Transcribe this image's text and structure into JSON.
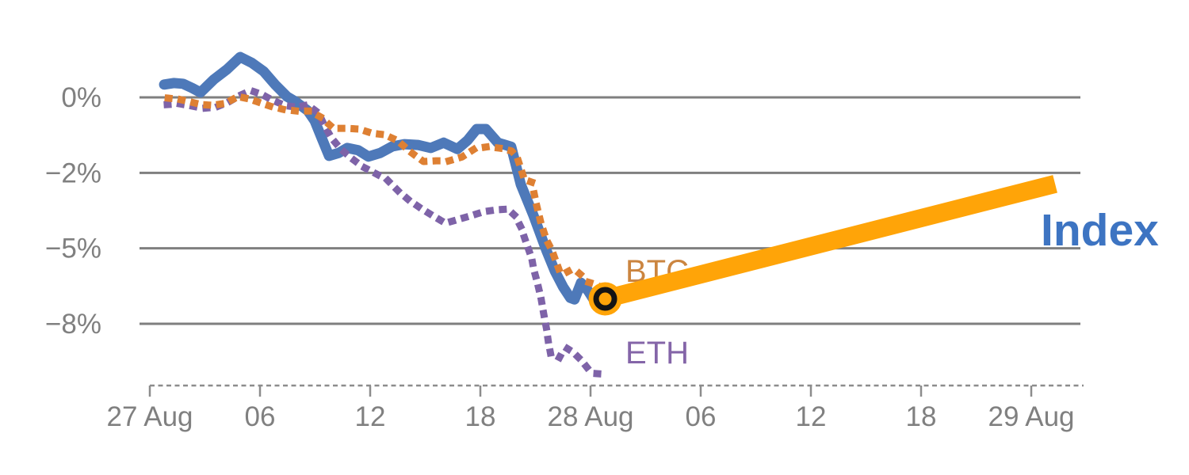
{
  "chart_data": {
    "type": "line",
    "title": "",
    "description": "Percent performance of crypto Index vs BTC and ETH from 27 Aug to 29 Aug, with current-point marker and rising projection band",
    "x_axis": {
      "unit": "hours since 27 Aug 00:00",
      "range_hours": [
        0,
        50.8
      ],
      "style": "dashed-line-with-ticks",
      "ticks": [
        {
          "t": 0,
          "label": "27 Aug"
        },
        {
          "t": 6,
          "label": "06"
        },
        {
          "t": 12,
          "label": "12"
        },
        {
          "t": 18,
          "label": "18"
        },
        {
          "t": 24,
          "label": "28 Aug"
        },
        {
          "t": 30,
          "label": "06"
        },
        {
          "t": 36,
          "label": "12"
        },
        {
          "t": 42,
          "label": "18"
        },
        {
          "t": 48,
          "label": "29 Aug"
        }
      ]
    },
    "y_axis": {
      "unit": "%",
      "grid": true,
      "note": "gridlines equally spaced for values 0, -2, -5, -8",
      "ticks": [
        {
          "v": 0,
          "label": "0%"
        },
        {
          "v": -2,
          "label": "−2%"
        },
        {
          "v": -5,
          "label": "−5%"
        },
        {
          "v": -8,
          "label": "−8%"
        }
      ]
    },
    "series": [
      {
        "name": "Index",
        "role": "index",
        "style": "solid",
        "color": "#4E79B9",
        "points": [
          [
            0.78,
            0.34
          ],
          [
            1.3,
            0.38
          ],
          [
            1.81,
            0.36
          ],
          [
            2.3,
            0.25
          ],
          [
            2.76,
            0.13
          ],
          [
            3.5,
            0.48
          ],
          [
            4.2,
            0.74
          ],
          [
            4.92,
            1.07
          ],
          [
            5.57,
            0.91
          ],
          [
            6.2,
            0.69
          ],
          [
            6.82,
            0.34
          ],
          [
            7.47,
            0.02
          ],
          [
            7.9,
            -0.1
          ],
          [
            8.6,
            -0.35
          ],
          [
            8.98,
            -0.62
          ],
          [
            9.37,
            -1.09
          ],
          [
            9.76,
            -1.55
          ],
          [
            10.3,
            -1.47
          ],
          [
            10.75,
            -1.34
          ],
          [
            11.35,
            -1.4
          ],
          [
            11.9,
            -1.57
          ],
          [
            12.56,
            -1.47
          ],
          [
            13.2,
            -1.3
          ],
          [
            13.86,
            -1.24
          ],
          [
            14.6,
            -1.26
          ],
          [
            15.3,
            -1.34
          ],
          [
            16.0,
            -1.2
          ],
          [
            16.75,
            -1.37
          ],
          [
            17.3,
            -1.14
          ],
          [
            17.8,
            -0.84
          ],
          [
            18.3,
            -0.84
          ],
          [
            18.95,
            -1.2
          ],
          [
            19.68,
            -1.31
          ],
          [
            20.2,
            -2.46
          ],
          [
            20.9,
            -3.71
          ],
          [
            21.6,
            -5.09
          ],
          [
            22.06,
            -5.91
          ],
          [
            22.5,
            -6.53
          ],
          [
            22.9,
            -6.97
          ],
          [
            23.13,
            -7.03
          ],
          [
            23.48,
            -6.37
          ],
          [
            23.87,
            -6.69
          ],
          [
            24.2,
            -7.07
          ],
          [
            24.5,
            -7.05
          ],
          [
            24.8,
            -7.01
          ]
        ]
      },
      {
        "name": "ETH",
        "role": "eth",
        "style": "dotted",
        "color": "#7E63A8",
        "points": [
          [
            0.95,
            -0.19
          ],
          [
            1.6,
            -0.17
          ],
          [
            2.2,
            -0.22
          ],
          [
            2.9,
            -0.29
          ],
          [
            3.6,
            -0.26
          ],
          [
            4.3,
            -0.12
          ],
          [
            4.9,
            0.05
          ],
          [
            5.5,
            0.18
          ],
          [
            6.1,
            0.08
          ],
          [
            6.7,
            -0.08
          ],
          [
            7.4,
            -0.22
          ],
          [
            8.0,
            -0.26
          ],
          [
            8.6,
            -0.2
          ],
          [
            9.2,
            -0.42
          ],
          [
            9.5,
            -0.74
          ],
          [
            9.9,
            -1.08
          ],
          [
            10.4,
            -1.37
          ],
          [
            11.0,
            -1.62
          ],
          [
            11.6,
            -1.84
          ],
          [
            12.3,
            -2.03
          ],
          [
            12.9,
            -2.26
          ],
          [
            13.5,
            -2.7
          ],
          [
            14.1,
            -3.08
          ],
          [
            14.7,
            -3.38
          ],
          [
            15.4,
            -3.7
          ],
          [
            16.1,
            -4.0
          ],
          [
            16.8,
            -3.85
          ],
          [
            17.5,
            -3.7
          ],
          [
            18.2,
            -3.54
          ],
          [
            18.9,
            -3.47
          ],
          [
            19.5,
            -3.44
          ],
          [
            19.9,
            -3.71
          ],
          [
            20.2,
            -4.15
          ],
          [
            20.5,
            -4.78
          ],
          [
            20.8,
            -5.41
          ],
          [
            20.9,
            -5.82
          ],
          [
            21.1,
            -6.35
          ],
          [
            21.3,
            -6.98
          ],
          [
            21.45,
            -7.6
          ],
          [
            21.6,
            -8.19
          ],
          [
            21.7,
            -8.7
          ],
          [
            21.85,
            -9.29
          ],
          [
            22.05,
            -9.35
          ],
          [
            22.3,
            -9.35
          ],
          [
            22.5,
            -9.07
          ],
          [
            22.7,
            -8.97
          ],
          [
            23.05,
            -9.13
          ],
          [
            23.5,
            -9.45
          ],
          [
            23.9,
            -9.82
          ],
          [
            24.3,
            -9.98
          ],
          [
            24.7,
            -10.0
          ]
        ]
      },
      {
        "name": "BTC",
        "role": "btc",
        "style": "dotted",
        "color": "#DE8033",
        "points": [
          [
            1.0,
            -0.02
          ],
          [
            1.6,
            -0.05
          ],
          [
            2.2,
            -0.12
          ],
          [
            2.8,
            -0.19
          ],
          [
            3.4,
            -0.21
          ],
          [
            4.1,
            -0.16
          ],
          [
            4.8,
            0.02
          ],
          [
            5.4,
            -0.04
          ],
          [
            6.0,
            -0.14
          ],
          [
            6.6,
            -0.24
          ],
          [
            7.3,
            -0.32
          ],
          [
            8.0,
            -0.36
          ],
          [
            8.7,
            -0.36
          ],
          [
            9.3,
            -0.52
          ],
          [
            10.0,
            -0.82
          ],
          [
            10.7,
            -0.82
          ],
          [
            11.4,
            -0.84
          ],
          [
            12.1,
            -0.95
          ],
          [
            12.8,
            -0.99
          ],
          [
            13.5,
            -1.15
          ],
          [
            14.2,
            -1.45
          ],
          [
            14.9,
            -1.7
          ],
          [
            15.6,
            -1.68
          ],
          [
            16.3,
            -1.68
          ],
          [
            17.0,
            -1.58
          ],
          [
            17.7,
            -1.36
          ],
          [
            18.4,
            -1.31
          ],
          [
            19.1,
            -1.35
          ],
          [
            19.7,
            -1.42
          ],
          [
            20.0,
            -1.58
          ],
          [
            20.4,
            -2.27
          ],
          [
            20.8,
            -2.37
          ],
          [
            21.05,
            -3.25
          ],
          [
            21.3,
            -4.0
          ],
          [
            21.6,
            -4.66
          ],
          [
            21.9,
            -5.09
          ],
          [
            22.3,
            -5.88
          ],
          [
            22.5,
            -6.03
          ],
          [
            22.8,
            -5.91
          ],
          [
            23.2,
            -5.88
          ],
          [
            23.6,
            -6.13
          ],
          [
            23.9,
            -6.35
          ],
          [
            24.3,
            -6.44
          ],
          [
            24.65,
            -6.58
          ]
        ]
      },
      {
        "name": "Index projection",
        "role": "projection",
        "style": "solid",
        "color": "#FFA408",
        "points": [
          [
            24.8,
            -7.01
          ],
          [
            49.3,
            -2.44
          ]
        ]
      }
    ],
    "marker": {
      "series": "Index",
      "t": 24.8,
      "v": -7.01,
      "disc_color": "#FFA408",
      "ring_color": "#141414"
    },
    "labels": {
      "btc": "BTC",
      "eth": "ETH",
      "index": "Index"
    },
    "label_colors": {
      "btc": "#CB8540",
      "eth": "#8465A8",
      "index": "#3D74C2"
    },
    "colors": {
      "gridline": "#7F7F7F",
      "axis": "#8C8C8C",
      "tick_text": "#808080",
      "background": "#FFFFFF"
    },
    "legend_position": "inline-labels-near-lines"
  }
}
